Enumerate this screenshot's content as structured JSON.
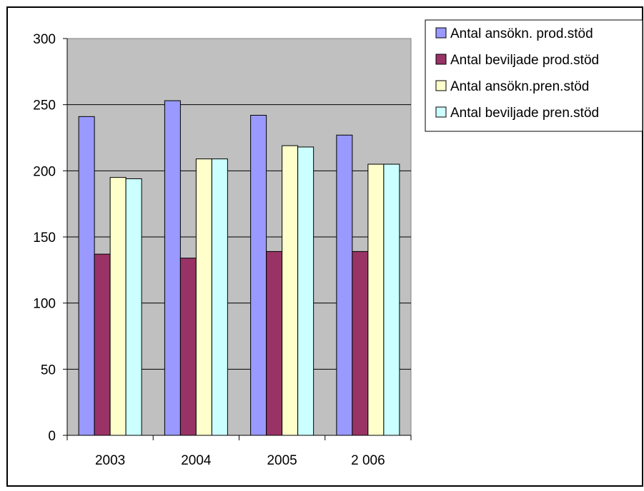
{
  "chart_data": {
    "type": "bar",
    "categories": [
      "2003",
      "2004",
      "2005",
      "2 006"
    ],
    "series": [
      {
        "name": "Antal ansökn. prod.stöd",
        "color": "#9999ff",
        "values": [
          241,
          253,
          242,
          227
        ]
      },
      {
        "name": "Antal beviljade prod.stöd",
        "color": "#993366",
        "values": [
          137,
          134,
          139,
          139
        ]
      },
      {
        "name": "Antal ansökn.pren.stöd",
        "color": "#ffffcc",
        "values": [
          195,
          209,
          219,
          205
        ]
      },
      {
        "name": "Antal beviljade pren.stöd",
        "color": "#ccffff",
        "values": [
          194,
          209,
          218,
          205
        ]
      }
    ],
    "ylim": [
      0,
      300
    ],
    "yticks": [
      0,
      50,
      100,
      150,
      200,
      250,
      300
    ],
    "grid": true,
    "plot_background": "#c0c0c0",
    "legend_position": "top-right"
  }
}
